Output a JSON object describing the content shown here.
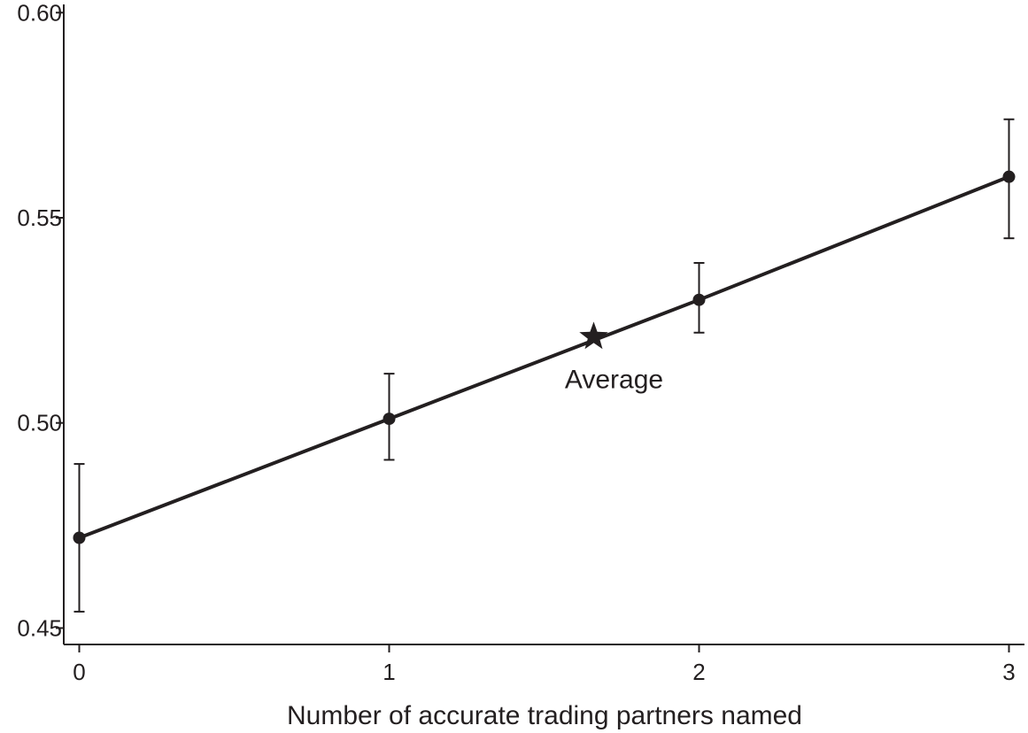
{
  "chart_data": {
    "type": "line",
    "title": "",
    "xlabel": "Number of accurate trading partners named",
    "ylabel": "",
    "xlim": [
      -0.05,
      3.05
    ],
    "ylim": [
      0.446,
      0.602
    ],
    "xticks": [
      0,
      1,
      2,
      3
    ],
    "xtick_labels": [
      "0",
      "1",
      "2",
      "3"
    ],
    "yticks": [
      0.45,
      0.5,
      0.55,
      0.6
    ],
    "ytick_labels": [
      "0.45",
      "0.50",
      "0.55",
      "0.60"
    ],
    "grid": false,
    "series": [
      {
        "x": [
          0,
          1,
          2,
          3
        ],
        "y": [
          0.472,
          0.501,
          0.53,
          0.56
        ],
        "ci_low": [
          0.454,
          0.491,
          0.522,
          0.545
        ],
        "ci_high": [
          0.49,
          0.512,
          0.539,
          0.574
        ]
      }
    ],
    "annotations": [
      {
        "text": "Average",
        "x": 1.66,
        "y": 0.521,
        "marker": "star"
      }
    ]
  }
}
